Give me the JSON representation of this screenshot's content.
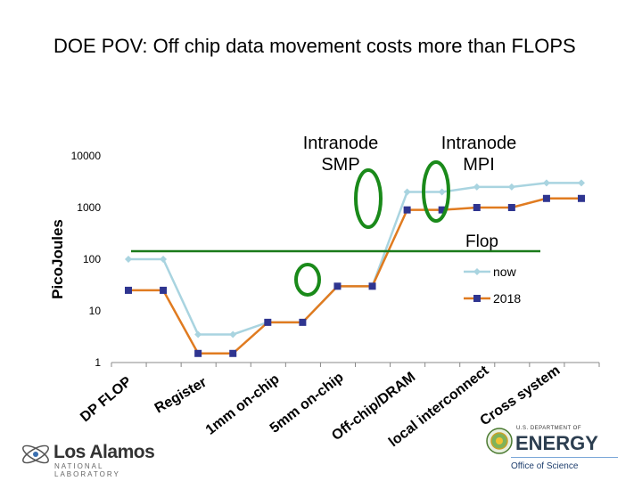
{
  "title": "DOE POV: Off chip data movement costs more than FLOPS",
  "colors": {
    "now": "#a9d4e0",
    "2018": "#e07b20",
    "marker_2018": "#2f3590",
    "flop_line": "#1a7a1a",
    "ellipse": "#1a8a1a"
  },
  "chart_data": {
    "type": "line",
    "title": "",
    "ylabel": "PicoJoules",
    "xlabel": "",
    "yscale": "log",
    "ylim": [
      1,
      10000
    ],
    "yticks": [
      1,
      10,
      100,
      1000,
      10000
    ],
    "ytick_labels": [
      "1",
      "10",
      "100",
      "1000",
      "10000"
    ],
    "categories": [
      "DP FLOP",
      "Register",
      "1mm on-chip",
      "5mm on-chip",
      "Off-chip/DRAM",
      "local interconnect",
      "Cross system"
    ],
    "x": [
      1,
      2,
      3,
      4,
      5,
      6,
      7,
      8,
      9,
      10,
      11,
      12,
      13,
      14
    ],
    "series": [
      {
        "name": "now",
        "values": [
          100,
          100,
          3.5,
          3.5,
          6,
          6,
          30,
          30,
          2000,
          2000,
          2500,
          2500,
          3000,
          3000
        ]
      },
      {
        "name": "2018",
        "values": [
          25,
          25,
          1.5,
          1.5,
          6,
          6,
          30,
          30,
          900,
          900,
          1000,
          1000,
          1500,
          1500
        ]
      }
    ],
    "reference_line": {
      "label": "Flop",
      "value": 135
    },
    "annotations": [
      "Intranode SMP",
      "Intranode MPI"
    ]
  },
  "logos": {
    "los_alamos": {
      "name": "Los Alamos",
      "sub": "NATIONAL LABORATORY"
    },
    "doe": {
      "top": "U.S. DEPARTMENT OF",
      "main": "ENERGY",
      "office": "Office of Science"
    }
  }
}
